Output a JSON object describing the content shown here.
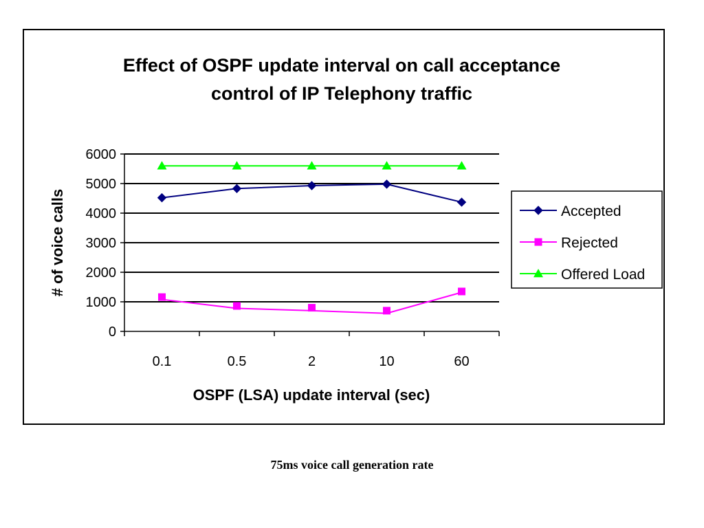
{
  "chart_data": {
    "type": "line",
    "title": [
      "Effect of OSPF update interval on call acceptance",
      "control of IP Telephony traffic"
    ],
    "xlabel": "OSPF (LSA) update interval (sec)",
    "ylabel": "# of voice calls",
    "categories": [
      "0.1",
      "0.5",
      "2",
      "10",
      "60"
    ],
    "ylim": [
      0,
      6000
    ],
    "yticks": [
      "0",
      "1000",
      "2000",
      "3000",
      "4000",
      "5000",
      "6000"
    ],
    "grid": "horizontal",
    "legend_position": "right",
    "series": [
      {
        "name": "Accepted",
        "values": [
          4520,
          4830,
          4930,
          4980,
          4370
        ],
        "color": "#000080",
        "marker": "diamond"
      },
      {
        "name": "Rejected",
        "values": [
          1080,
          780,
          700,
          610,
          1320
        ],
        "marker_values": [
          1160,
          860,
          800,
          700,
          1350
        ],
        "color": "#ff00ff",
        "marker": "square"
      },
      {
        "name": "Offered Load",
        "values": [
          5600,
          5600,
          5600,
          5600,
          5600
        ],
        "color": "#00ff00",
        "marker": "triangle"
      }
    ]
  },
  "caption": "75ms voice call generation rate"
}
